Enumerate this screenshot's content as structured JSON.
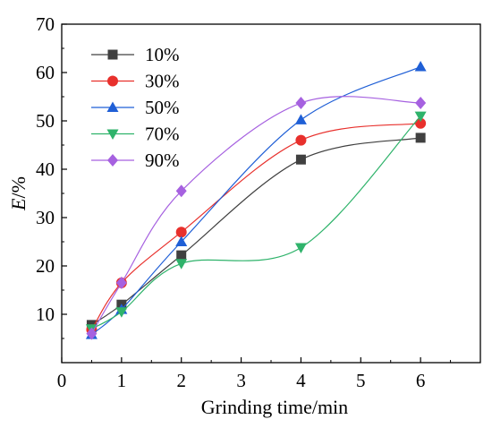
{
  "chart_data": {
    "type": "line",
    "title": "",
    "xlabel": "Grinding time/min",
    "ylabel": "E/%",
    "xlim": [
      0,
      7
    ],
    "ylim": [
      0,
      70
    ],
    "xticks": [
      0,
      1,
      2,
      3,
      4,
      5,
      6
    ],
    "yticks": [
      10,
      20,
      30,
      40,
      50,
      60,
      70
    ],
    "grid": false,
    "legend_position": "top-left",
    "x": [
      0.5,
      1,
      2,
      4,
      6
    ],
    "series": [
      {
        "name": "10%",
        "values": [
          7.8,
          12.0,
          22.2,
          42.0,
          46.5
        ],
        "color": "#404040",
        "marker": "square"
      },
      {
        "name": "30%",
        "values": [
          6.8,
          16.5,
          27.0,
          46.0,
          49.5
        ],
        "color": "#e8302c",
        "marker": "circle"
      },
      {
        "name": "50%",
        "values": [
          5.8,
          11.0,
          25.0,
          50.2,
          61.2
        ],
        "color": "#1f5fd6",
        "marker": "triangle-up"
      },
      {
        "name": "70%",
        "values": [
          7.0,
          10.5,
          20.5,
          23.8,
          51.0
        ],
        "color": "#2fb36b",
        "marker": "triangle-down"
      },
      {
        "name": "90%",
        "values": [
          6.0,
          16.5,
          35.5,
          53.7,
          53.7
        ],
        "color": "#a661e0",
        "marker": "diamond"
      }
    ]
  }
}
